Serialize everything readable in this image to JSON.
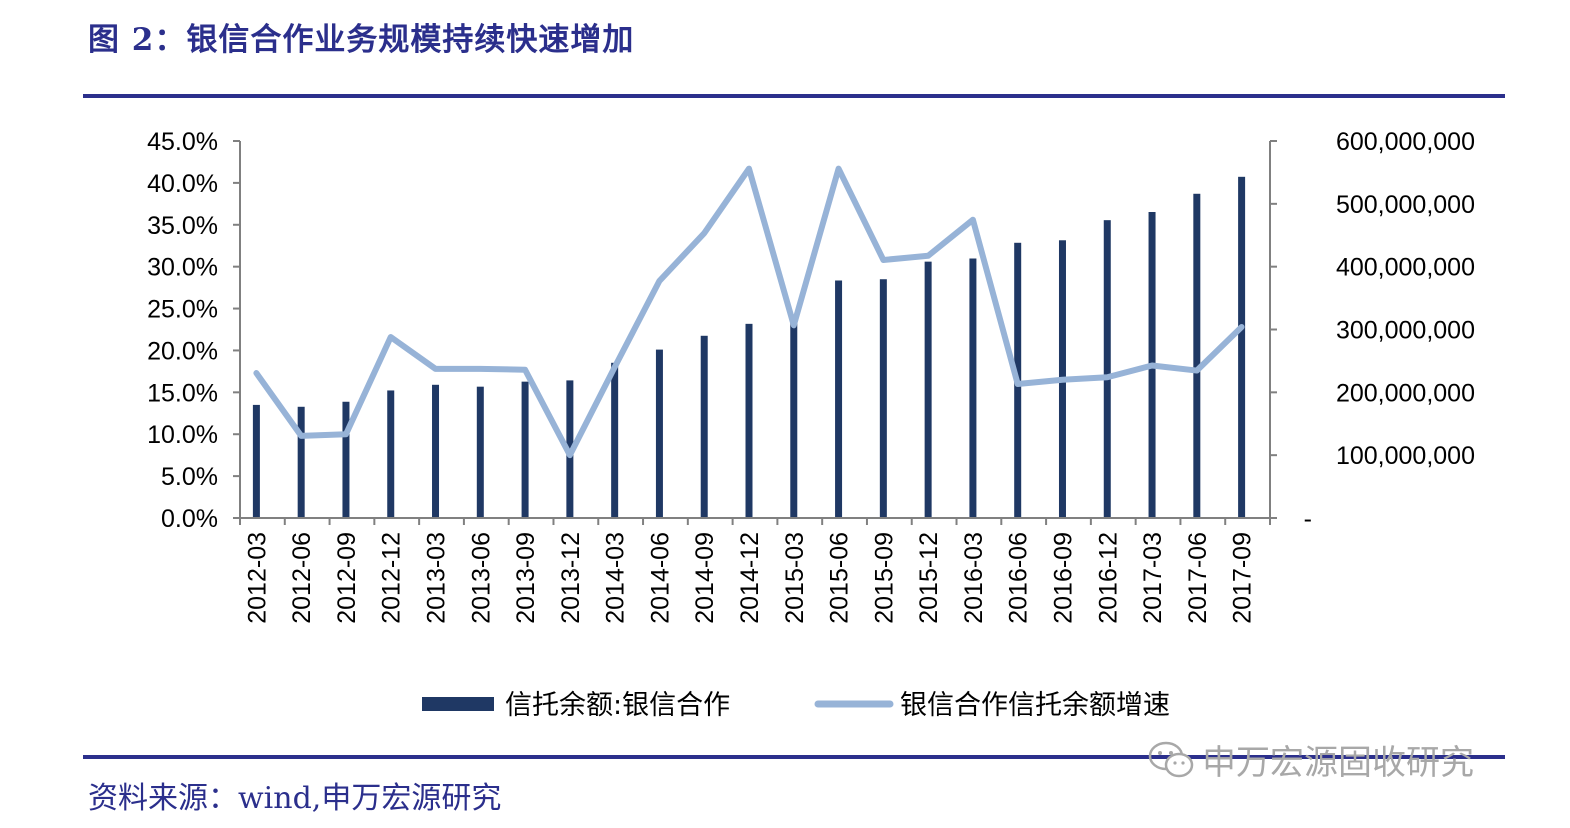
{
  "header": {
    "title": "图 2：银信合作业务规模持续快速增加"
  },
  "footer": {
    "source": "资料来源：wind,申万宏源研究",
    "watermark": "申万宏源固收研究"
  },
  "colors": {
    "accent": "#2b2f8c",
    "bar": "#1f3864",
    "line": "#97b3d7"
  },
  "chart_data": {
    "type": "bar",
    "categories": [
      "2012-03",
      "2012-06",
      "2012-09",
      "2012-12",
      "2013-03",
      "2013-06",
      "2013-09",
      "2013-12",
      "2014-03",
      "2014-06",
      "2014-09",
      "2014-12",
      "2015-03",
      "2015-06",
      "2015-09",
      "2015-12",
      "2016-03",
      "2016-06",
      "2016-09",
      "2016-12",
      "2017-03",
      "2017-06",
      "2017-09"
    ],
    "series": [
      {
        "name": "信托余额:银信合作",
        "type": "bar",
        "axis": "right",
        "values": [
          180000000,
          177000000,
          185000000,
          203000000,
          212000000,
          209000000,
          217000000,
          219000000,
          247000000,
          268000000,
          290000000,
          309000000,
          311000000,
          378000000,
          380000000,
          408000000,
          413000000,
          438000000,
          442000000,
          474000000,
          487000000,
          516000000,
          543000000
        ]
      },
      {
        "name": "银信合作信托余额增速",
        "type": "line",
        "axis": "left",
        "values": [
          17.3,
          9.8,
          10.0,
          21.6,
          17.8,
          17.8,
          17.7,
          7.5,
          18.0,
          28.3,
          34.0,
          41.7,
          23.0,
          41.7,
          30.8,
          31.3,
          35.6,
          16.0,
          16.5,
          16.8,
          18.2,
          17.6,
          22.8
        ]
      }
    ],
    "left_axis": {
      "ticks": [
        "0.0%",
        "5.0%",
        "10.0%",
        "15.0%",
        "20.0%",
        "25.0%",
        "30.0%",
        "35.0%",
        "40.0%",
        "45.0%"
      ],
      "ylim": [
        0,
        45
      ]
    },
    "right_axis": {
      "ticks": [
        "-",
        "100,000,000",
        "200,000,000",
        "300,000,000",
        "400,000,000",
        "500,000,000",
        "600,000,000"
      ],
      "ylim": [
        0,
        600000000
      ]
    },
    "legend": "bottom",
    "grid": false
  }
}
